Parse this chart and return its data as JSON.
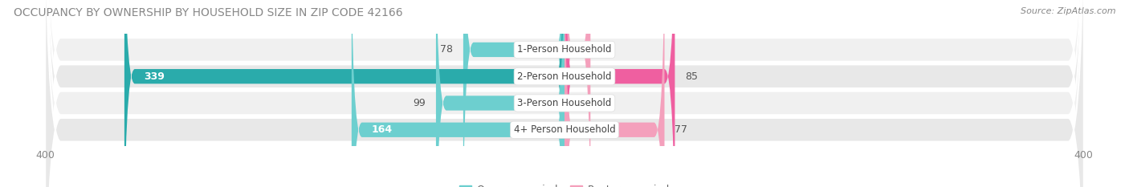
{
  "title": "OCCUPANCY BY OWNERSHIP BY HOUSEHOLD SIZE IN ZIP CODE 42166",
  "source": "Source: ZipAtlas.com",
  "categories": [
    "1-Person Household",
    "2-Person Household",
    "3-Person Household",
    "4+ Person Household"
  ],
  "owner_values": [
    78,
    339,
    99,
    164
  ],
  "renter_values": [
    20,
    85,
    0,
    77
  ],
  "owner_color_light": "#6DCFCF",
  "owner_color_dark": "#2AABAB",
  "renter_color_light": "#F4A0BC",
  "renter_color_dark": "#EF5FA0",
  "row_bg_colors": [
    "#F0F0F0",
    "#E8E8E8",
    "#F0F0F0",
    "#E8E8E8"
  ],
  "xlim": 400,
  "title_fontsize": 10,
  "label_fontsize": 9,
  "tick_fontsize": 9,
  "legend_fontsize": 9,
  "source_fontsize": 8,
  "background_color": "#FFFFFF"
}
